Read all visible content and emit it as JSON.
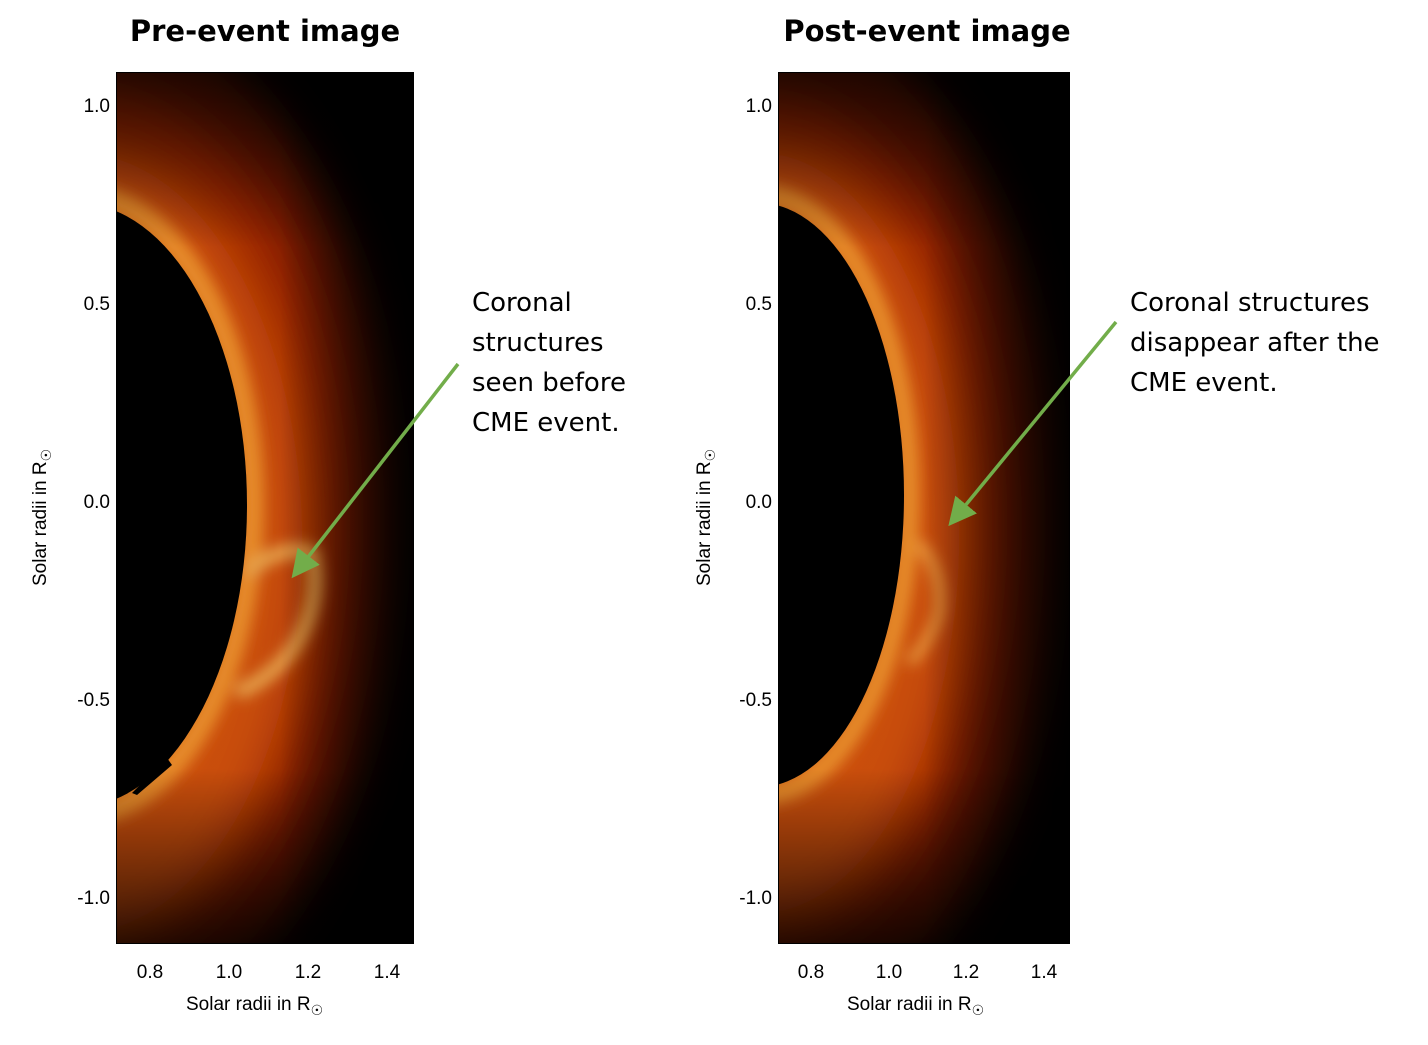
{
  "panels": {
    "left": {
      "title": "Pre-event image",
      "xlabel": "Solar radii in R",
      "ylabel": "Solar radii in R",
      "xticks": [
        "0.8",
        "1.0",
        "1.2",
        "1.4"
      ],
      "yticks": [
        "1.0",
        "0.5",
        "0.0",
        "-0.5",
        "-1.0"
      ],
      "annotation": [
        "Coronal",
        "structures",
        "seen before",
        "CME event."
      ]
    },
    "right": {
      "title": "Post-event image",
      "xlabel": "Solar radii in R",
      "ylabel": "Solar radii in R",
      "xticks": [
        "0.8",
        "1.0",
        "1.2",
        "1.4"
      ],
      "yticks": [
        "1.0",
        "0.5",
        "0.0",
        "-0.5",
        "-1.0"
      ],
      "annotation": [
        "Coronal structures",
        "disappear after the",
        "CME event."
      ]
    }
  },
  "sun_symbol": "☉",
  "colors": {
    "background": "#000000",
    "corona_bright": "#ff9a2e",
    "corona_mid": "#c43a0a",
    "arrow": "#72ad4a"
  }
}
